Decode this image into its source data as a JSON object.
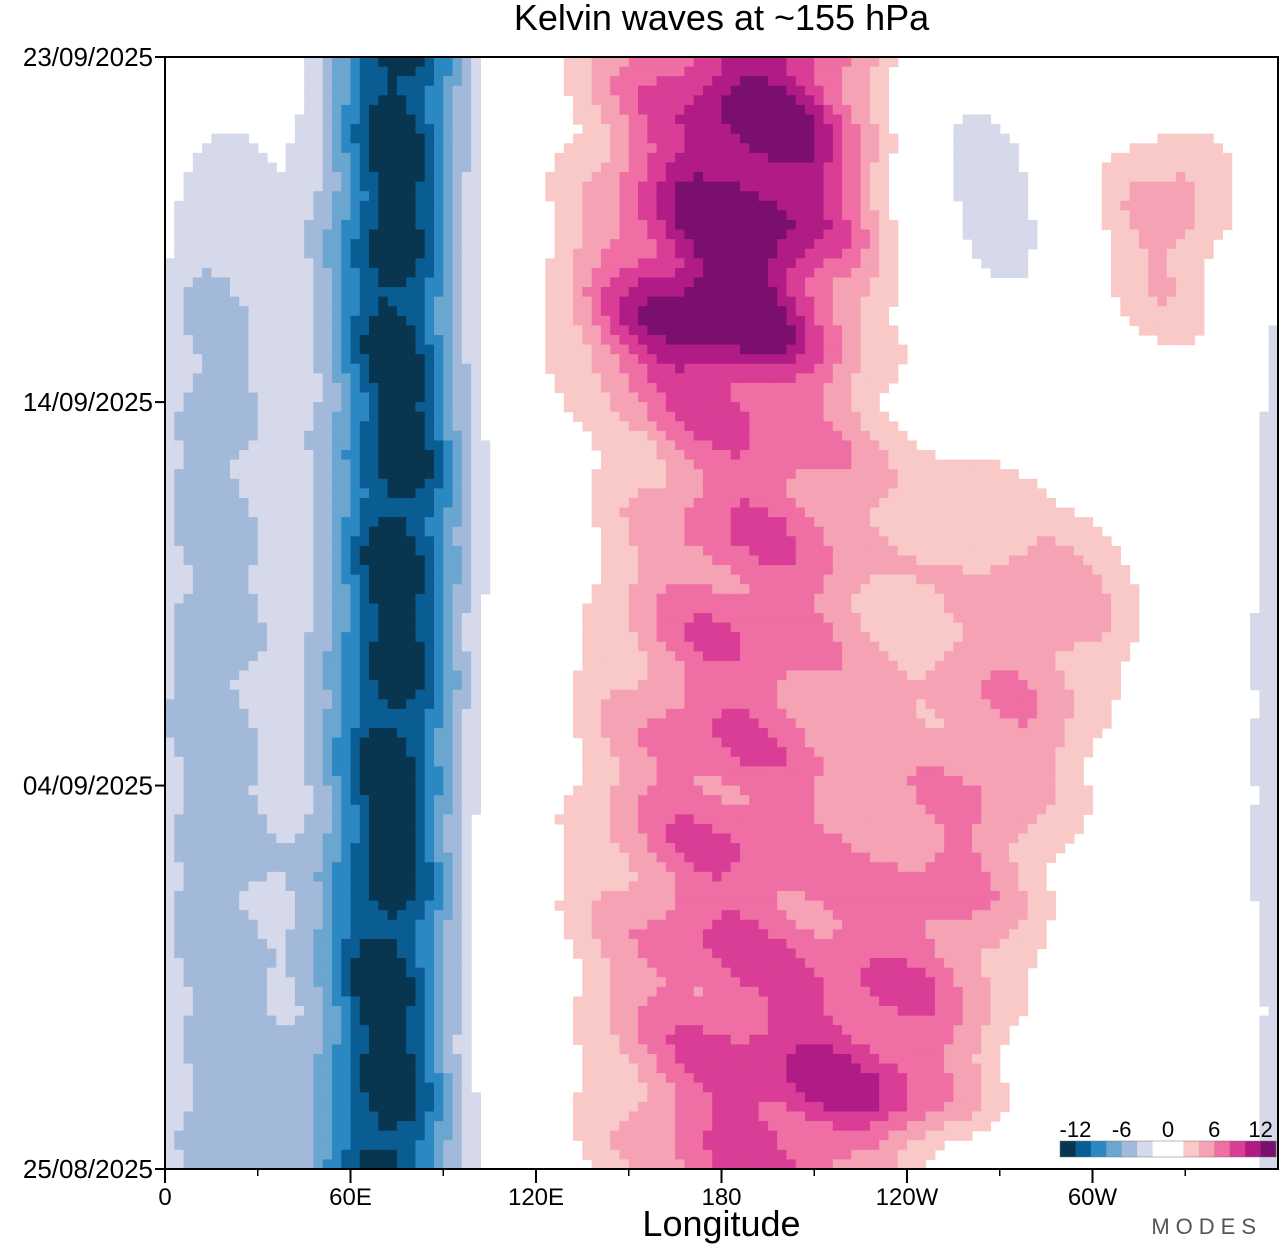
{
  "chart_data": {
    "type": "heatmap",
    "title": "Kelvin waves at ~155 hPa",
    "xlabel": "Longitude",
    "ylabel": "",
    "x_ticks": [
      {
        "lon": 0,
        "label": "0"
      },
      {
        "lon": 60,
        "label": "60E"
      },
      {
        "lon": 120,
        "label": "120E"
      },
      {
        "lon": 180,
        "label": "180"
      },
      {
        "lon": 240,
        "label": "120W"
      },
      {
        "lon": 300,
        "label": "60W"
      }
    ],
    "x_minor_ticks": [
      30,
      90,
      150,
      210,
      270,
      330
    ],
    "xlim": [
      0,
      360
    ],
    "y_ticks": [
      {
        "day": 0,
        "label": "25/08/2025"
      },
      {
        "day": 10,
        "label": "04/09/2025"
      },
      {
        "day": 20,
        "label": "14/09/2025"
      },
      {
        "day": 29,
        "label": "23/09/2025"
      }
    ],
    "ylim": [
      0,
      29
    ],
    "colorbar": {
      "labels": [
        "-12",
        "-6",
        "0",
        "6",
        "12"
      ],
      "levels": [
        -14,
        -12,
        -10,
        -8,
        -6,
        -4,
        -2,
        2,
        4,
        6,
        8,
        10,
        12,
        14
      ],
      "colors": [
        "#08354f",
        "#0a5d93",
        "#2b88c2",
        "#6aa6d0",
        "#a2b9d9",
        "#d5d9ea",
        "#ffffff",
        "#ffffff",
        "#f9c9c8",
        "#f6a2b5",
        "#ef6fa5",
        "#d93d96",
        "#b01b85",
        "#7a0f6e"
      ],
      "placement": "bottom-right"
    },
    "value_scale": [
      -14,
      14
    ],
    "series": [
      {
        "center_lon_by_day": [
          [
            0,
            72
          ],
          [
            6,
            72
          ],
          [
            12,
            74
          ],
          [
            18,
            76
          ],
          [
            24,
            74
          ],
          [
            29,
            76
          ]
        ],
        "sigma_lon": 16,
        "amplitude": -13.5,
        "ripples": 0.12
      },
      {
        "center_lon_by_day": [
          [
            0,
            188
          ],
          [
            5,
            180
          ],
          [
            10,
            180
          ],
          [
            14,
            186
          ],
          [
            18,
            192
          ],
          [
            22,
            176
          ],
          [
            26,
            180
          ],
          [
            29,
            180
          ]
        ],
        "sigma_lon": 38,
        "amplitude": 9.5,
        "ripples": 0.18
      },
      {
        "center_lon_by_day": [
          [
            2,
            236
          ],
          [
            8,
            260
          ],
          [
            14,
            284
          ],
          [
            20,
            300
          ],
          [
            26,
            330
          ]
        ],
        "sigma_lon": 28,
        "amplitude": 7.0,
        "ripples": 0.15
      },
      {
        "center_lon_by_day": [
          [
            18,
            300
          ],
          [
            22,
            290
          ],
          [
            26,
            262
          ],
          [
            29,
            240
          ]
        ],
        "sigma_lon": 22,
        "amplitude": -5.0,
        "ripples": 0.1
      },
      {
        "center_lon_by_day": [
          [
            0,
            20
          ],
          [
            10,
            15
          ],
          [
            20,
            15
          ],
          [
            26,
            10
          ]
        ],
        "sigma_lon": 18,
        "amplitude": -5.0,
        "ripples": 0.15
      },
      {
        "center_lon_by_day": [
          [
            22,
            180
          ],
          [
            26,
            200
          ],
          [
            29,
            215
          ]
        ],
        "sigma_lon": 30,
        "amplitude": 6.5,
        "ripples": 0.15
      }
    ]
  },
  "brand": "MODES"
}
